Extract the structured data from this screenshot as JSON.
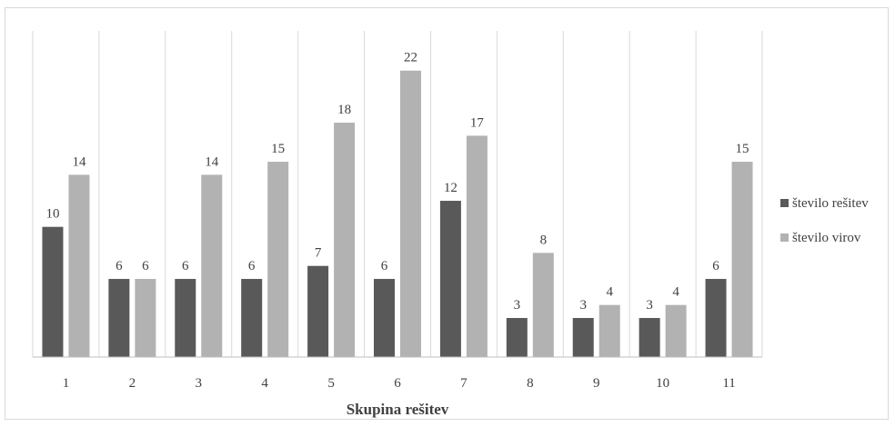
{
  "chart_data": {
    "type": "bar",
    "title": "",
    "xlabel": "Skupina rešitev",
    "ylabel": "",
    "ylim": [
      0,
      22
    ],
    "grid": "vertical category separators",
    "legend_position": "right",
    "categories": [
      "1",
      "2",
      "3",
      "4",
      "5",
      "6",
      "7",
      "8",
      "9",
      "10",
      "11"
    ],
    "series": [
      {
        "name": "število rešitev",
        "color": "#595959",
        "values": [
          10,
          6,
          6,
          6,
          7,
          6,
          12,
          3,
          3,
          3,
          6
        ]
      },
      {
        "name": "število virov",
        "color": "#b2b2b2",
        "values": [
          14,
          6,
          14,
          15,
          18,
          22,
          17,
          8,
          4,
          4,
          15
        ]
      }
    ],
    "data_labels": true
  }
}
